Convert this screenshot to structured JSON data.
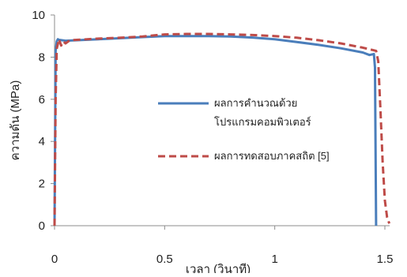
{
  "colors": {
    "computed": "#4a7ebb",
    "experimental": "#be4b48",
    "axis": "#8c8c8c"
  },
  "chart_data": {
    "type": "line",
    "title": "",
    "xlabel": "เวลา (วินาที)",
    "ylabel": "ความดัน (MPa)",
    "xlim": [
      0,
      1.5
    ],
    "ylim": [
      0,
      10
    ],
    "xticks": [
      "0",
      "0.5",
      "1",
      "1.5"
    ],
    "yticks": [
      "0",
      "2",
      "4",
      "6",
      "8",
      "10"
    ],
    "grid": false,
    "legend_position": "center-right",
    "series": [
      {
        "name": "ผลการคำนวณด้วยโปรแกรมคอมพิวเตอร์",
        "name_lines": [
          "ผลการคำนวณด้วย",
          "โปรแกรมคอมพิวเตอร์"
        ],
        "style": "solid",
        "x": [
          0,
          0.005,
          0.01,
          0.015,
          0.02,
          0.05,
          0.1,
          0.2,
          0.3,
          0.4,
          0.5,
          0.6,
          0.7,
          0.8,
          0.9,
          1.0,
          1.1,
          1.2,
          1.3,
          1.4,
          1.43,
          1.45,
          1.455,
          1.46
        ],
        "y": [
          0,
          8.3,
          8.75,
          8.85,
          8.82,
          8.78,
          8.8,
          8.85,
          8.9,
          8.95,
          9.0,
          9.0,
          9.0,
          8.98,
          8.93,
          8.85,
          8.72,
          8.58,
          8.42,
          8.22,
          8.1,
          8.15,
          7.5,
          0
        ]
      },
      {
        "name": "ผลการทดสอบภาคสถิต [5]",
        "name_lines": [
          "ผลการทดสอบภาคสถิต [5]"
        ],
        "style": "dashed",
        "x": [
          0,
          0.005,
          0.01,
          0.02,
          0.03,
          0.04,
          0.05,
          0.07,
          0.1,
          0.2,
          0.3,
          0.4,
          0.5,
          0.6,
          0.7,
          0.8,
          0.9,
          1.0,
          1.1,
          1.2,
          1.3,
          1.4,
          1.44,
          1.46,
          1.47,
          1.48,
          1.49,
          1.5,
          1.51,
          1.52
        ],
        "y": [
          0,
          6.0,
          8.4,
          8.85,
          8.55,
          8.75,
          8.65,
          8.8,
          8.82,
          8.88,
          8.92,
          8.98,
          9.08,
          9.1,
          9.1,
          9.08,
          9.05,
          9.0,
          8.92,
          8.8,
          8.65,
          8.45,
          8.35,
          8.3,
          7.8,
          5.5,
          3.0,
          1.2,
          0.4,
          0.1
        ]
      }
    ]
  }
}
